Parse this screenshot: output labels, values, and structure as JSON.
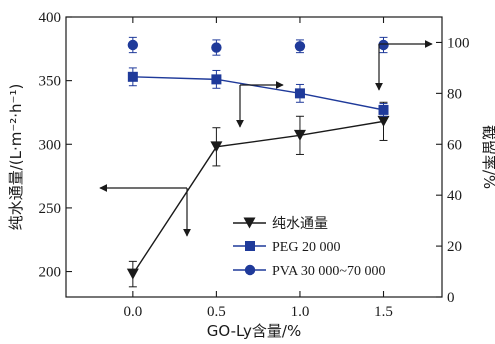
{
  "chart_data": {
    "type": "line",
    "x_axis": {
      "label": "GO-Ly含量/%",
      "range": [
        -0.4,
        1.85
      ],
      "ticks": [
        0.0,
        0.5,
        1.0,
        1.5
      ],
      "tick_labels": [
        "0.0",
        "0.5",
        "1.0",
        "1.5"
      ]
    },
    "y_axis_left": {
      "label": "纯水通量/(L·m⁻²·h⁻¹)",
      "range": [
        180,
        400
      ],
      "ticks": [
        200,
        250,
        300,
        350,
        400
      ],
      "tick_labels": [
        "200",
        "250",
        "300",
        "350",
        "400"
      ]
    },
    "y_axis_right": {
      "label": "截留率/%",
      "range": [
        0,
        110
      ],
      "ticks": [
        0,
        20,
        40,
        60,
        80,
        100
      ],
      "tick_labels": [
        "0",
        "20",
        "40",
        "60",
        "80",
        "100"
      ]
    },
    "grid": false,
    "legend": {
      "placement": "bottom-center",
      "entries": [
        "纯水通量",
        "PEG 20 000",
        "PVA 30 000~70 000"
      ]
    },
    "series": [
      {
        "name": "纯水通量",
        "axis": "left",
        "marker": "triangle-down",
        "color": "#1a1a1a",
        "x": [
          0.0,
          0.5,
          1.0,
          1.5
        ],
        "y": [
          198,
          298,
          307,
          318
        ],
        "error": [
          10,
          15,
          15,
          15
        ]
      },
      {
        "name": "PEG 20 000",
        "axis": "left",
        "marker": "square",
        "color": "#1f3a9a",
        "x": [
          0.0,
          0.5,
          1.0,
          1.5
        ],
        "y": [
          353,
          351,
          340,
          327
        ],
        "error": [
          7,
          7,
          7,
          5
        ]
      },
      {
        "name": "PVA 30 000~70 000",
        "axis": "right",
        "marker": "circle",
        "color": "#1f3a9a",
        "x": [
          0.0,
          0.5,
          1.0,
          1.5
        ],
        "y": [
          99,
          98,
          98.5,
          99
        ],
        "error": [
          3,
          3,
          2.5,
          3
        ]
      }
    ]
  }
}
